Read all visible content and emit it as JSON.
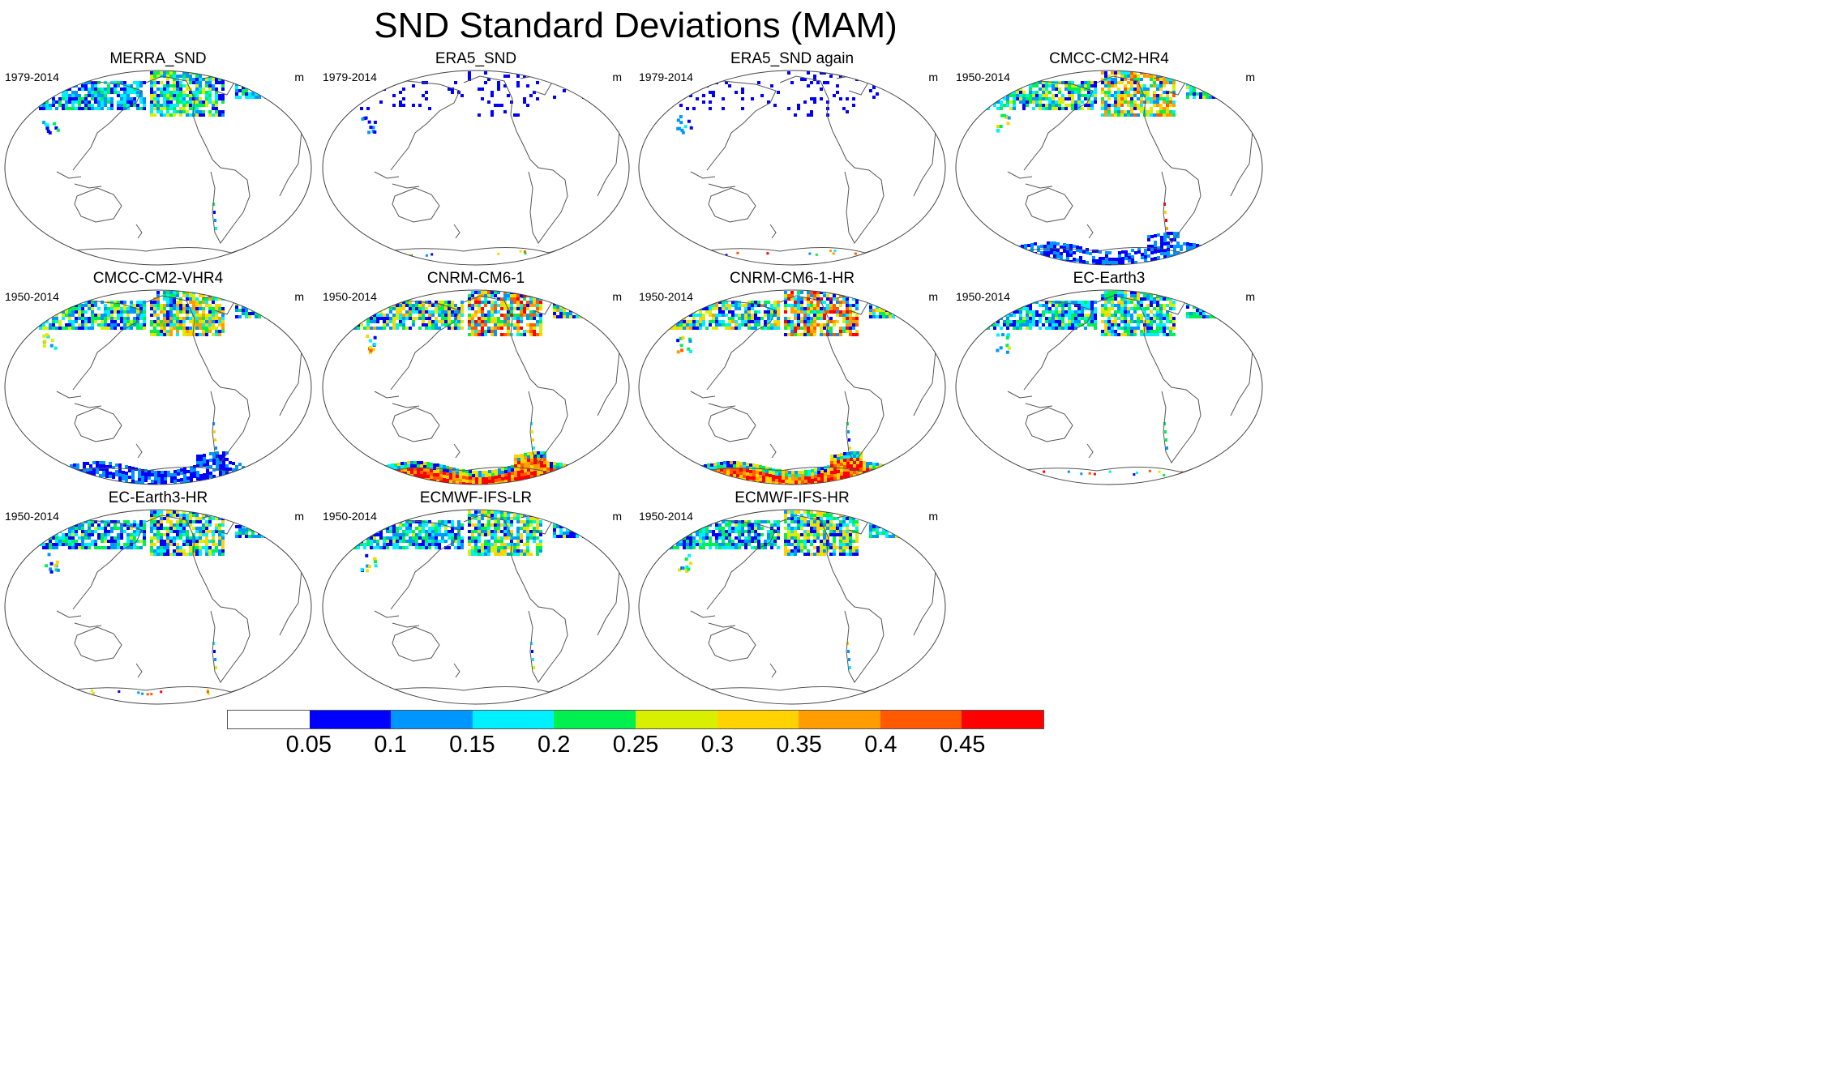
{
  "title": "SND Standard Deviations (MAM)",
  "units": "m",
  "panels": [
    {
      "title": "MERRA_SND",
      "period": "1979-2014",
      "snow_intensity": 0.18,
      "antarctic": "none",
      "andes": true
    },
    {
      "title": "ERA5_SND",
      "period": "1979-2014",
      "snow_intensity": 0.08,
      "antarctic": "dots",
      "andes": false
    },
    {
      "title": "ERA5_SND again",
      "period": "1979-2014",
      "snow_intensity": 0.08,
      "antarctic": "dots",
      "andes": false
    },
    {
      "title": "CMCC-CM2-HR4",
      "period": "1950-2014",
      "snow_intensity": 0.28,
      "antarctic": "blue",
      "andes": true
    },
    {
      "title": "CMCC-CM2-VHR4",
      "period": "1950-2014",
      "snow_intensity": 0.26,
      "antarctic": "blue",
      "andes": true
    },
    {
      "title": "CNRM-CM6-1",
      "period": "1950-2014",
      "snow_intensity": 0.34,
      "antarctic": "red",
      "andes": true
    },
    {
      "title": "CNRM-CM6-1-HR",
      "period": "1950-2014",
      "snow_intensity": 0.34,
      "antarctic": "red",
      "andes": true
    },
    {
      "title": "EC-Earth3",
      "period": "1950-2014",
      "snow_intensity": 0.22,
      "antarctic": "dots",
      "andes": true
    },
    {
      "title": "EC-Earth3-HR",
      "period": "1950-2014",
      "snow_intensity": 0.22,
      "antarctic": "dots",
      "andes": true
    },
    {
      "title": "ECMWF-IFS-LR",
      "period": "1950-2014",
      "snow_intensity": 0.22,
      "antarctic": "none",
      "andes": true
    },
    {
      "title": "ECMWF-IFS-HR",
      "period": "1950-2014",
      "snow_intensity": 0.22,
      "antarctic": "none",
      "andes": true
    }
  ],
  "colorbar": {
    "colors": [
      "#ffffff",
      "#0000ff",
      "#0096ff",
      "#00f0ff",
      "#00f050",
      "#d8f000",
      "#ffd200",
      "#ff9c00",
      "#ff5a00",
      "#ff0000"
    ],
    "labels": [
      "0.05",
      "0.1",
      "0.15",
      "0.2",
      "0.25",
      "0.3",
      "0.35",
      "0.4",
      "0.45"
    ]
  },
  "coast_color": "#555555"
}
